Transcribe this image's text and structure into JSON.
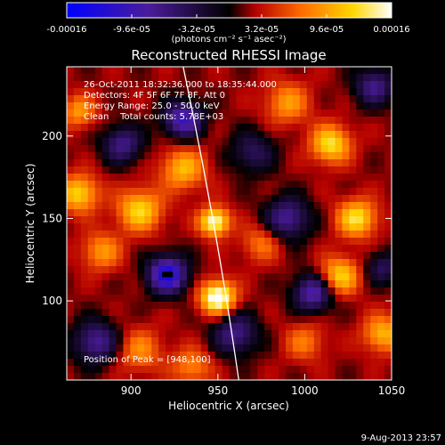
{
  "colorbar": {
    "tick_labels": [
      "-0.00016",
      "-9.6e-05",
      "-3.2e-05",
      "3.2e-05",
      "9.6e-05",
      "0.00016"
    ],
    "tick_values": [
      -0.00016,
      -9.6e-05,
      -3.2e-05,
      3.2e-05,
      9.6e-05,
      0.00016
    ],
    "range": [
      -0.00016,
      0.00016
    ],
    "units": "(photons cm⁻² s⁻¹ asec⁻²)",
    "colors": [
      "#0000ff",
      "#4b1c9c",
      "#000000",
      "#b40000",
      "#ff6a00",
      "#ffd700",
      "#ffffff"
    ]
  },
  "chart_data": {
    "type": "heatmap",
    "title": "Reconstructed RHESSI Image",
    "xlabel": "Heliocentric X (arcsec)",
    "ylabel": "Heliocentric Y (arcsec)",
    "xlim": [
      863,
      1050
    ],
    "ylim": [
      52,
      242
    ],
    "xticks": [
      900,
      950,
      1000,
      1050
    ],
    "yticks": [
      100,
      150,
      200
    ],
    "xtick_labels": [
      "900",
      "950",
      "1000",
      "1050"
    ],
    "ytick_labels": [
      "100",
      "150",
      "200"
    ],
    "info": [
      "26-Oct-2011 18:32:36.000 to 18:35:44.000",
      "Detectors: 4F 5F 6F 7F 8F, Att 0",
      "Energy Range: 25.0 - 50.0 keV",
      "Clean    Total counts: 5.78E+03"
    ],
    "peak_text": "Position of Peak = [948,100]",
    "peak": [
      948,
      100
    ],
    "min_marker": [
      921,
      116
    ],
    "limb": {
      "top": [
        930,
        242
      ],
      "bottom": [
        962,
        52
      ]
    },
    "sources": [
      {
        "x": 950,
        "y": 102,
        "a": 1.0,
        "s": 7
      },
      {
        "x": 948,
        "y": 148,
        "a": 0.9,
        "s": 6
      },
      {
        "x": 905,
        "y": 155,
        "a": 0.65,
        "s": 9
      },
      {
        "x": 870,
        "y": 165,
        "a": 0.65,
        "s": 8
      },
      {
        "x": 883,
        "y": 130,
        "a": 0.45,
        "s": 8
      },
      {
        "x": 930,
        "y": 180,
        "a": 0.55,
        "s": 9
      },
      {
        "x": 1015,
        "y": 195,
        "a": 0.7,
        "s": 8
      },
      {
        "x": 1030,
        "y": 150,
        "a": 0.7,
        "s": 8
      },
      {
        "x": 1020,
        "y": 115,
        "a": 0.65,
        "s": 8
      },
      {
        "x": 1045,
        "y": 80,
        "a": 0.55,
        "s": 8
      },
      {
        "x": 990,
        "y": 220,
        "a": 0.45,
        "s": 9
      },
      {
        "x": 975,
        "y": 135,
        "a": 0.35,
        "s": 8
      },
      {
        "x": 870,
        "y": 215,
        "a": 0.45,
        "s": 7
      },
      {
        "x": 905,
        "y": 70,
        "a": 0.4,
        "s": 9
      },
      {
        "x": 1000,
        "y": 75,
        "a": 0.35,
        "s": 8
      },
      {
        "x": 935,
        "y": 60,
        "a": 0.4,
        "s": 8
      },
      {
        "x": 921,
        "y": 116,
        "a": -0.95,
        "s": 8
      },
      {
        "x": 930,
        "y": 210,
        "a": -0.75,
        "s": 8
      },
      {
        "x": 990,
        "y": 150,
        "a": -0.6,
        "s": 9
      },
      {
        "x": 1005,
        "y": 105,
        "a": -0.7,
        "s": 8
      },
      {
        "x": 880,
        "y": 75,
        "a": -0.6,
        "s": 9
      },
      {
        "x": 960,
        "y": 80,
        "a": -0.55,
        "s": 9
      },
      {
        "x": 895,
        "y": 195,
        "a": -0.55,
        "s": 8
      },
      {
        "x": 1040,
        "y": 230,
        "a": -0.55,
        "s": 8
      },
      {
        "x": 970,
        "y": 190,
        "a": -0.4,
        "s": 9
      },
      {
        "x": 1045,
        "y": 120,
        "a": -0.4,
        "s": 7
      }
    ]
  },
  "footer": {
    "date": "9-Aug-2013 23:57"
  }
}
